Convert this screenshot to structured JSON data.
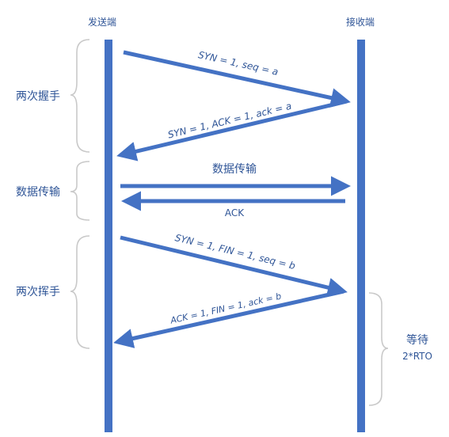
{
  "colors": {
    "accent": "#4472c4",
    "text": "#2f5597",
    "brace": "#c9c9c9"
  },
  "headers": {
    "sender": "发送端",
    "receiver": "接收端"
  },
  "phases": {
    "handshake": "两次握手",
    "transfer": "数据传输",
    "wave": "两次挥手"
  },
  "messages": {
    "syn": "SYN = 1, seq = a",
    "syn_ack": "SYN = 1, ACK = 1, ack = a",
    "data": "数据传输",
    "ack": "ACK",
    "syn_fin": "SYN = 1, FIN = 1,  seq = b",
    "ack_fin": "ACK = 1, FIN = 1, ack = b"
  },
  "wait": {
    "line1": "等待",
    "line2": "2*RTO"
  }
}
